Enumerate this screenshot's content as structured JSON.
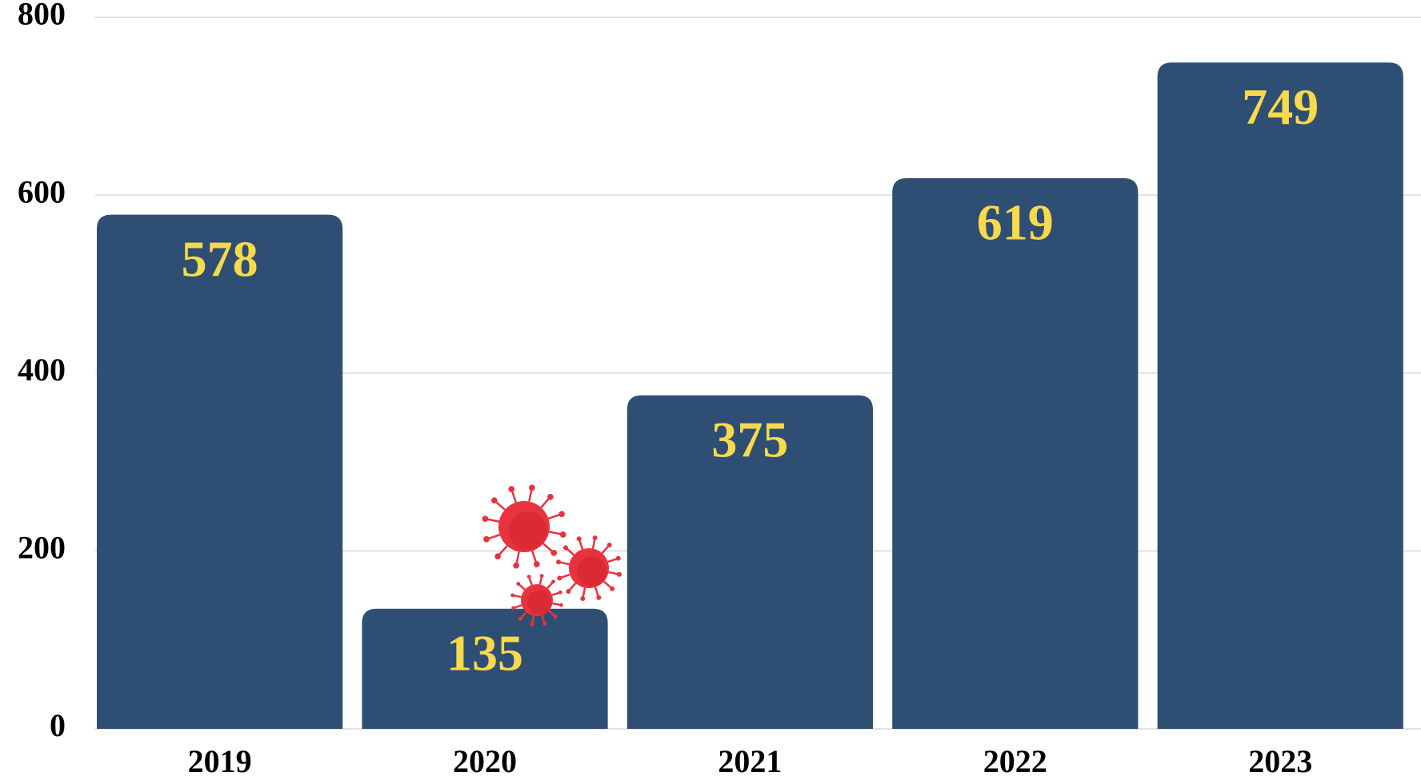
{
  "chart_data": {
    "type": "bar",
    "categories": [
      "2019",
      "2020",
      "2021",
      "2022",
      "2023"
    ],
    "values": [
      578,
      135,
      375,
      619,
      749
    ],
    "color": "#2e4e73",
    "label_color": "#f7d94c",
    "ylim": [
      0,
      800
    ],
    "yticks": [
      0,
      200,
      400,
      600,
      800
    ],
    "grid": true
  }
}
